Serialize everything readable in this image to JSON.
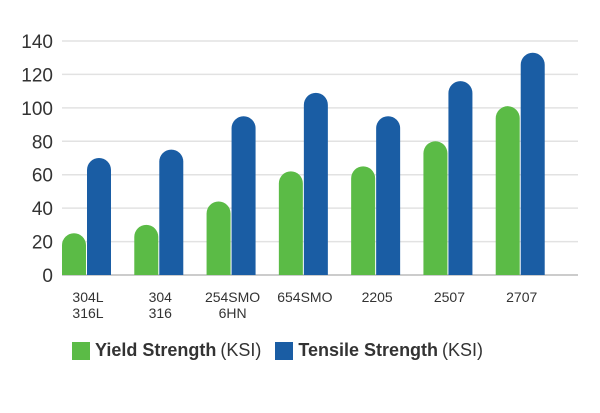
{
  "chart_data": {
    "type": "bar",
    "categories": [
      [
        "304L",
        "316L"
      ],
      [
        "304",
        "316"
      ],
      [
        "254SMO",
        "6HN"
      ],
      [
        "654SMO"
      ],
      [
        "2205"
      ],
      [
        "2507"
      ],
      [
        "2707"
      ]
    ],
    "series": [
      {
        "name": "Yield Strength",
        "unit": "(KSI)",
        "color": "#5bbb46",
        "values": [
          25,
          30,
          44,
          62,
          65,
          80,
          101
        ]
      },
      {
        "name": "Tensile Strength",
        "unit": "(KSI)",
        "color": "#1a5da4",
        "values": [
          70,
          75,
          95,
          109,
          95,
          116,
          133
        ]
      }
    ],
    "yticks": [
      0,
      20,
      40,
      60,
      80,
      100,
      120,
      140
    ],
    "ylim": [
      0,
      140
    ],
    "grid": true,
    "legend": "bottom",
    "title": "",
    "xlabel": "",
    "ylabel": ""
  }
}
